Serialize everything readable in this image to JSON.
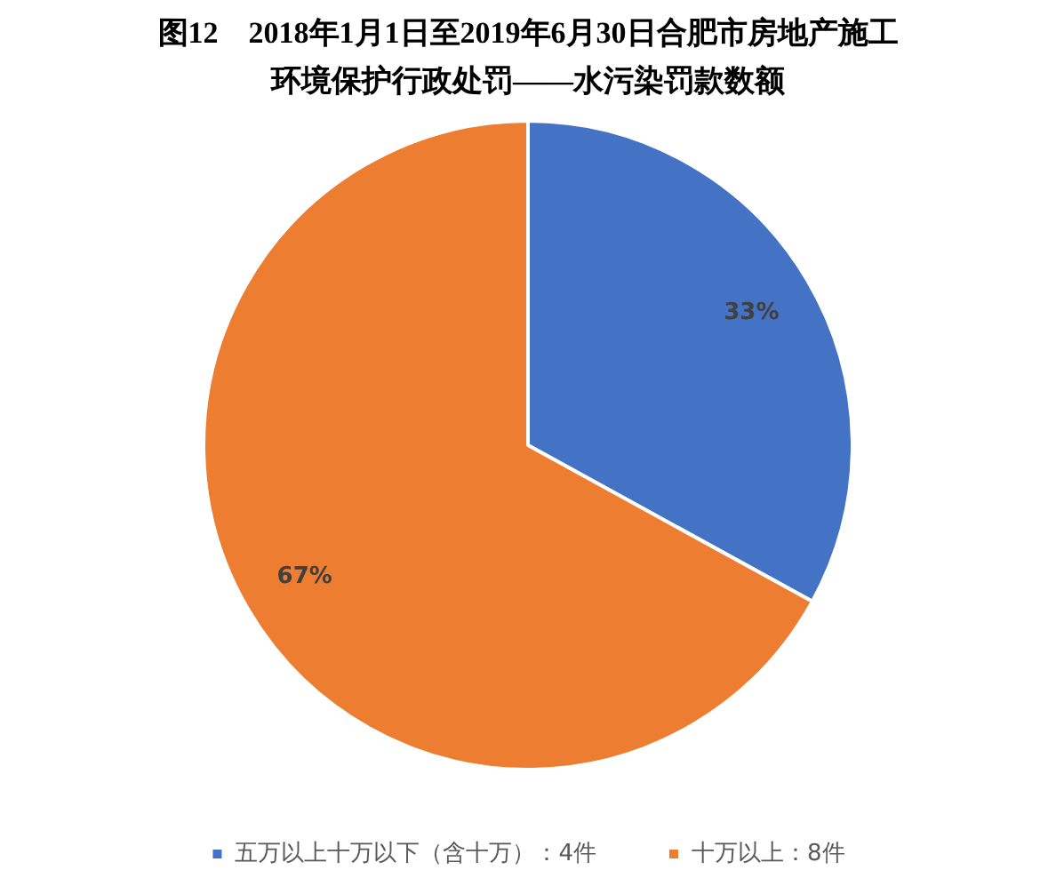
{
  "chart_data": {
    "type": "pie",
    "title": "图12　2018年1月1日至2019年6月30日合肥市房地产施工环境保护行政处罚——水污染罚款数额",
    "categories": [
      "五万以上十万以下（含十万）：4件",
      "十万以上：8件"
    ],
    "values": [
      33,
      67
    ],
    "colors": [
      "#4472c4",
      "#ed7d31"
    ],
    "value_labels": [
      "33%",
      "67%"
    ],
    "legend": "bottom"
  }
}
